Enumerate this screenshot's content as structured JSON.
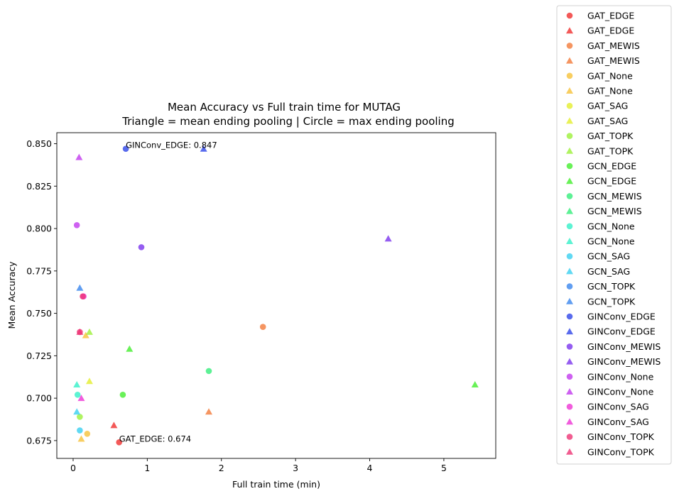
{
  "chart_data": {
    "type": "scatter",
    "title_lines": [
      "Mean Accuracy vs Full train time for MUTAG",
      "Triangle = mean ending pooling | Circle = max ending pooling"
    ],
    "xlabel": "Full train time (min)",
    "ylabel": "Mean Accuracy",
    "xlim": [
      -0.22,
      5.7
    ],
    "ylim": [
      0.6645,
      0.8565
    ],
    "x_ticks": [
      0,
      1,
      2,
      3,
      4,
      5
    ],
    "y_ticks": [
      0.675,
      0.7,
      0.725,
      0.75,
      0.775,
      0.8,
      0.825,
      0.85
    ],
    "x_tick_labels": [
      "0",
      "1",
      "2",
      "3",
      "4",
      "5"
    ],
    "y_tick_labels": [
      "0.675",
      "0.700",
      "0.725",
      "0.750",
      "0.775",
      "0.800",
      "0.825",
      "0.850"
    ],
    "grid": false,
    "legend_position": "outside-right",
    "series": [
      {
        "name": "GAT_EDGE",
        "marker": "circle",
        "color": "#f0302e",
        "points": [
          [
            0.62,
            0.674
          ]
        ]
      },
      {
        "name": "GAT_EDGE",
        "marker": "triangle",
        "color": "#f0302e",
        "points": [
          [
            0.55,
            0.684
          ]
        ]
      },
      {
        "name": "GAT_MEWIS",
        "marker": "circle",
        "color": "#f27a3a",
        "points": [
          [
            2.56,
            0.742
          ]
        ]
      },
      {
        "name": "GAT_MEWIS",
        "marker": "triangle",
        "color": "#f27a3a",
        "points": [
          [
            1.83,
            0.692
          ]
        ]
      },
      {
        "name": "GAT_None",
        "marker": "circle",
        "color": "#f6c23a",
        "points": [
          [
            0.19,
            0.679
          ]
        ]
      },
      {
        "name": "GAT_None",
        "marker": "triangle",
        "color": "#f6c23a",
        "points": [
          [
            0.11,
            0.676
          ],
          [
            0.17,
            0.737
          ]
        ]
      },
      {
        "name": "GAT_SAG",
        "marker": "circle",
        "color": "#e4ee2e",
        "points": []
      },
      {
        "name": "GAT_SAG",
        "marker": "triangle",
        "color": "#e4ee2e",
        "points": [
          [
            0.22,
            0.71
          ]
        ]
      },
      {
        "name": "GAT_TOPK",
        "marker": "circle",
        "color": "#9cf03a",
        "points": [
          [
            0.09,
            0.689
          ]
        ]
      },
      {
        "name": "GAT_TOPK",
        "marker": "triangle",
        "color": "#9cf03a",
        "points": [
          [
            0.22,
            0.739
          ]
        ]
      },
      {
        "name": "GCN_EDGE",
        "marker": "circle",
        "color": "#44ee2e",
        "points": [
          [
            0.67,
            0.702
          ]
        ]
      },
      {
        "name": "GCN_EDGE",
        "marker": "triangle",
        "color": "#44ee2e",
        "points": [
          [
            0.76,
            0.729
          ],
          [
            5.42,
            0.708
          ]
        ]
      },
      {
        "name": "GCN_MEWIS",
        "marker": "circle",
        "color": "#35ee7a",
        "points": [
          [
            1.83,
            0.716
          ]
        ]
      },
      {
        "name": "GCN_MEWIS",
        "marker": "triangle",
        "color": "#35ee7a",
        "points": []
      },
      {
        "name": "GCN_None",
        "marker": "circle",
        "color": "#35f0c8",
        "points": [
          [
            0.06,
            0.702
          ]
        ]
      },
      {
        "name": "GCN_None",
        "marker": "triangle",
        "color": "#35f0c8",
        "points": [
          [
            0.05,
            0.708
          ]
        ]
      },
      {
        "name": "GCN_SAG",
        "marker": "circle",
        "color": "#3ad0f0",
        "points": [
          [
            0.09,
            0.681
          ]
        ]
      },
      {
        "name": "GCN_SAG",
        "marker": "triangle",
        "color": "#3ad0f0",
        "points": [
          [
            0.05,
            0.692
          ]
        ]
      },
      {
        "name": "GCN_TOPK",
        "marker": "circle",
        "color": "#3a86ee",
        "points": []
      },
      {
        "name": "GCN_TOPK",
        "marker": "triangle",
        "color": "#3a86ee",
        "points": [
          [
            0.09,
            0.765
          ]
        ]
      },
      {
        "name": "GINConv_EDGE",
        "marker": "circle",
        "color": "#3046e8",
        "points": [
          [
            0.71,
            0.847
          ]
        ]
      },
      {
        "name": "GINConv_EDGE",
        "marker": "triangle",
        "color": "#3046e8",
        "points": [
          [
            1.76,
            0.847
          ]
        ]
      },
      {
        "name": "GINConv_MEWIS",
        "marker": "circle",
        "color": "#7a35ee",
        "points": [
          [
            0.92,
            0.789
          ]
        ]
      },
      {
        "name": "GINConv_MEWIS",
        "marker": "triangle",
        "color": "#7a35ee",
        "points": [
          [
            4.25,
            0.794
          ]
        ]
      },
      {
        "name": "GINConv_None",
        "marker": "circle",
        "color": "#c23aee",
        "points": [
          [
            0.05,
            0.802
          ]
        ]
      },
      {
        "name": "GINConv_None",
        "marker": "triangle",
        "color": "#c23aee",
        "points": [
          [
            0.08,
            0.842
          ]
        ]
      },
      {
        "name": "GINConv_SAG",
        "marker": "circle",
        "color": "#ee35d4",
        "points": [
          [
            0.14,
            0.76
          ]
        ]
      },
      {
        "name": "GINConv_SAG",
        "marker": "triangle",
        "color": "#ee35d4",
        "points": [
          [
            0.11,
            0.7
          ]
        ]
      },
      {
        "name": "GINConv_TOPK",
        "marker": "circle",
        "color": "#ee3576",
        "points": [
          [
            0.13,
            0.76
          ],
          [
            0.09,
            0.739
          ]
        ]
      },
      {
        "name": "GINConv_TOPK",
        "marker": "triangle",
        "color": "#ee3576",
        "points": [
          [
            0.09,
            0.739
          ]
        ]
      }
    ],
    "annotations": [
      {
        "text": "GINConv_EDGE: 0.847",
        "x": 0.71,
        "y": 0.847
      },
      {
        "text": "GAT_EDGE: 0.674",
        "x": 0.62,
        "y": 0.674
      }
    ]
  }
}
